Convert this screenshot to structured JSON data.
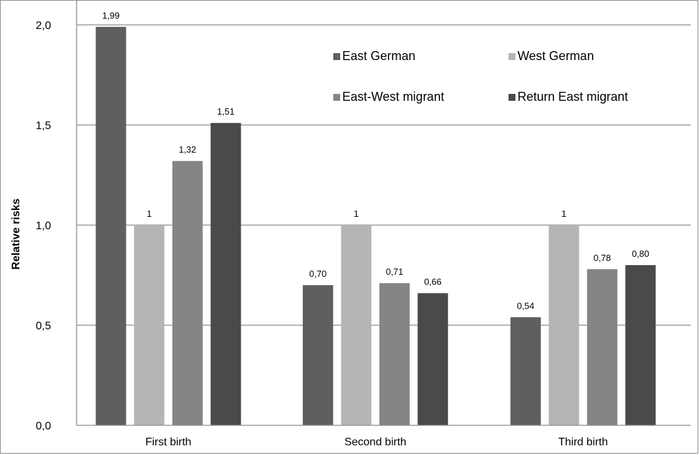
{
  "chart_data": {
    "type": "bar",
    "title": "",
    "xlabel": "",
    "ylabel": "Relative risks",
    "ylim": [
      0,
      2.0
    ],
    "yticks": [
      "0,0",
      "0,5",
      "1,0",
      "1,5",
      "2,0"
    ],
    "ytick_values": [
      0,
      0.5,
      1.0,
      1.5,
      2.0
    ],
    "grid": true,
    "legend_position": "top-right",
    "categories": [
      "First birth",
      "Second birth",
      "Third birth"
    ],
    "series": [
      {
        "name": "East German",
        "color": "#5f5f5f",
        "values": [
          1.99,
          0.7,
          0.54
        ],
        "labels": [
          "1,99",
          "0,70",
          "0,54"
        ]
      },
      {
        "name": "West German",
        "color": "#b5b5b5",
        "values": [
          1.0,
          1.0,
          1.0
        ],
        "labels": [
          "1",
          "1",
          "1"
        ]
      },
      {
        "name": "East-West migrant",
        "color": "#858585",
        "values": [
          1.32,
          0.71,
          0.78
        ],
        "labels": [
          "1,32",
          "0,71",
          "0,78"
        ]
      },
      {
        "name": "Return East migrant",
        "color": "#4a4a4a",
        "values": [
          1.51,
          0.66,
          0.8
        ],
        "labels": [
          "1,51",
          "0,66",
          "0,80"
        ]
      }
    ]
  }
}
